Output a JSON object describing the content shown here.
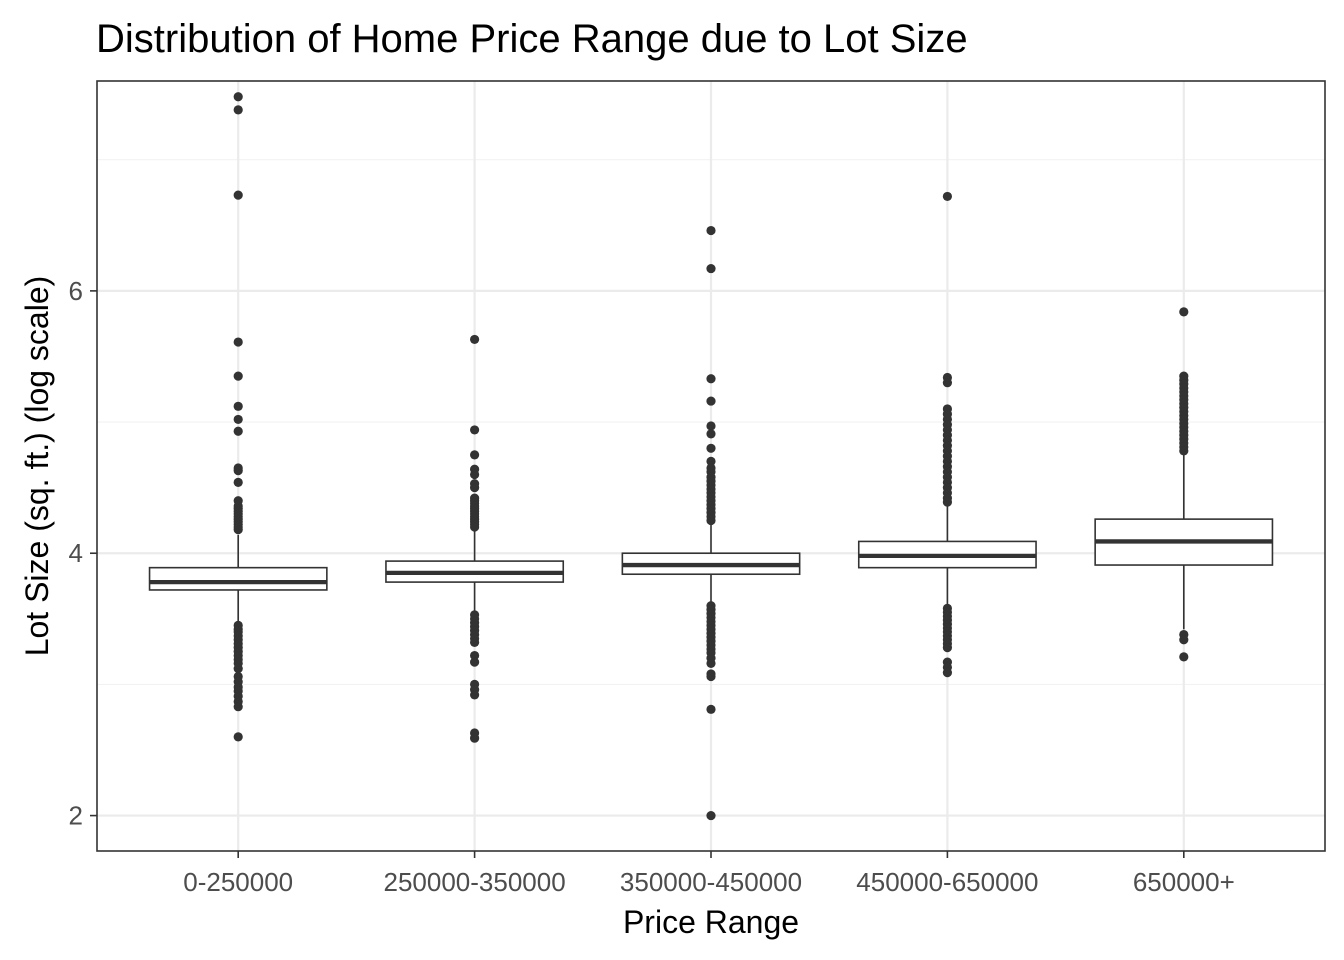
{
  "chart_data": {
    "type": "boxplot",
    "title": "Distribution of Home Price Range due to Lot Size",
    "xlabel": "Price Range",
    "ylabel": "Lot Size (sq. ft.) (log scale)",
    "ylim": [
      1.73,
      7.6
    ],
    "yticks": [
      2,
      4,
      6
    ],
    "yminor": [
      3,
      5,
      7
    ],
    "grid": true,
    "legend": "none",
    "categories": [
      "0-250000",
      "250000-350000",
      "350000-450000",
      "450000-650000",
      "650000+"
    ],
    "boxes": [
      {
        "category": "0-250000",
        "q1": 3.72,
        "median": 3.78,
        "q3": 3.89,
        "whisker_low": 3.47,
        "whisker_high": 4.14,
        "outliers": [
          7.48,
          7.38,
          6.73,
          5.61,
          5.35,
          5.12,
          5.02,
          4.93,
          4.65,
          4.63,
          4.54,
          4.4,
          4.36,
          4.34,
          4.32,
          4.3,
          4.28,
          4.26,
          4.24,
          4.22,
          4.2,
          4.18,
          3.45,
          3.42,
          3.4,
          3.37,
          3.34,
          3.31,
          3.28,
          3.25,
          3.22,
          3.19,
          3.16,
          3.12,
          3.06,
          3.02,
          2.98,
          2.95,
          2.91,
          2.87,
          2.83,
          2.6
        ]
      },
      {
        "category": "250000-350000",
        "q1": 3.78,
        "median": 3.85,
        "q3": 3.94,
        "whisker_low": 3.55,
        "whisker_high": 4.17,
        "outliers": [
          5.63,
          4.94,
          4.75,
          4.64,
          4.6,
          4.53,
          4.5,
          4.42,
          4.4,
          4.38,
          4.36,
          4.34,
          4.32,
          4.3,
          4.28,
          4.26,
          4.24,
          4.22,
          4.2,
          3.53,
          3.5,
          3.47,
          3.44,
          3.41,
          3.38,
          3.35,
          3.32,
          3.22,
          3.17,
          3.0,
          2.96,
          2.92,
          2.63,
          2.59
        ]
      },
      {
        "category": "350000-450000",
        "q1": 3.84,
        "median": 3.91,
        "q3": 4.0,
        "whisker_low": 3.62,
        "whisker_high": 4.23,
        "outliers": [
          6.46,
          6.17,
          5.33,
          5.16,
          4.97,
          4.91,
          4.8,
          4.7,
          4.65,
          4.62,
          4.58,
          4.55,
          4.52,
          4.49,
          4.46,
          4.43,
          4.4,
          4.37,
          4.34,
          4.31,
          4.28,
          4.25,
          3.6,
          3.57,
          3.54,
          3.51,
          3.48,
          3.45,
          3.42,
          3.39,
          3.36,
          3.33,
          3.3,
          3.27,
          3.24,
          3.2,
          3.16,
          3.08,
          3.06,
          2.81,
          2.0
        ]
      },
      {
        "category": "450000-650000",
        "q1": 3.89,
        "median": 3.98,
        "q3": 4.09,
        "whisker_low": 3.6,
        "whisker_high": 4.37,
        "outliers": [
          6.72,
          5.34,
          5.3,
          5.1,
          5.06,
          5.02,
          4.98,
          4.94,
          4.9,
          4.86,
          4.82,
          4.78,
          4.74,
          4.7,
          4.66,
          4.62,
          4.58,
          4.54,
          4.5,
          4.46,
          4.42,
          4.39,
          3.58,
          3.55,
          3.52,
          3.49,
          3.46,
          3.43,
          3.4,
          3.37,
          3.34,
          3.31,
          3.28,
          3.17,
          3.13,
          3.09
        ]
      },
      {
        "category": "650000+",
        "q1": 3.91,
        "median": 4.09,
        "q3": 4.26,
        "whisker_low": 3.42,
        "whisker_high": 4.76,
        "outliers": [
          5.84,
          5.35,
          5.32,
          5.29,
          5.26,
          5.23,
          5.2,
          5.17,
          5.14,
          5.11,
          5.08,
          5.05,
          5.02,
          4.99,
          4.96,
          4.93,
          4.9,
          4.87,
          4.84,
          4.81,
          4.78,
          3.38,
          3.34,
          3.21
        ]
      }
    ]
  }
}
